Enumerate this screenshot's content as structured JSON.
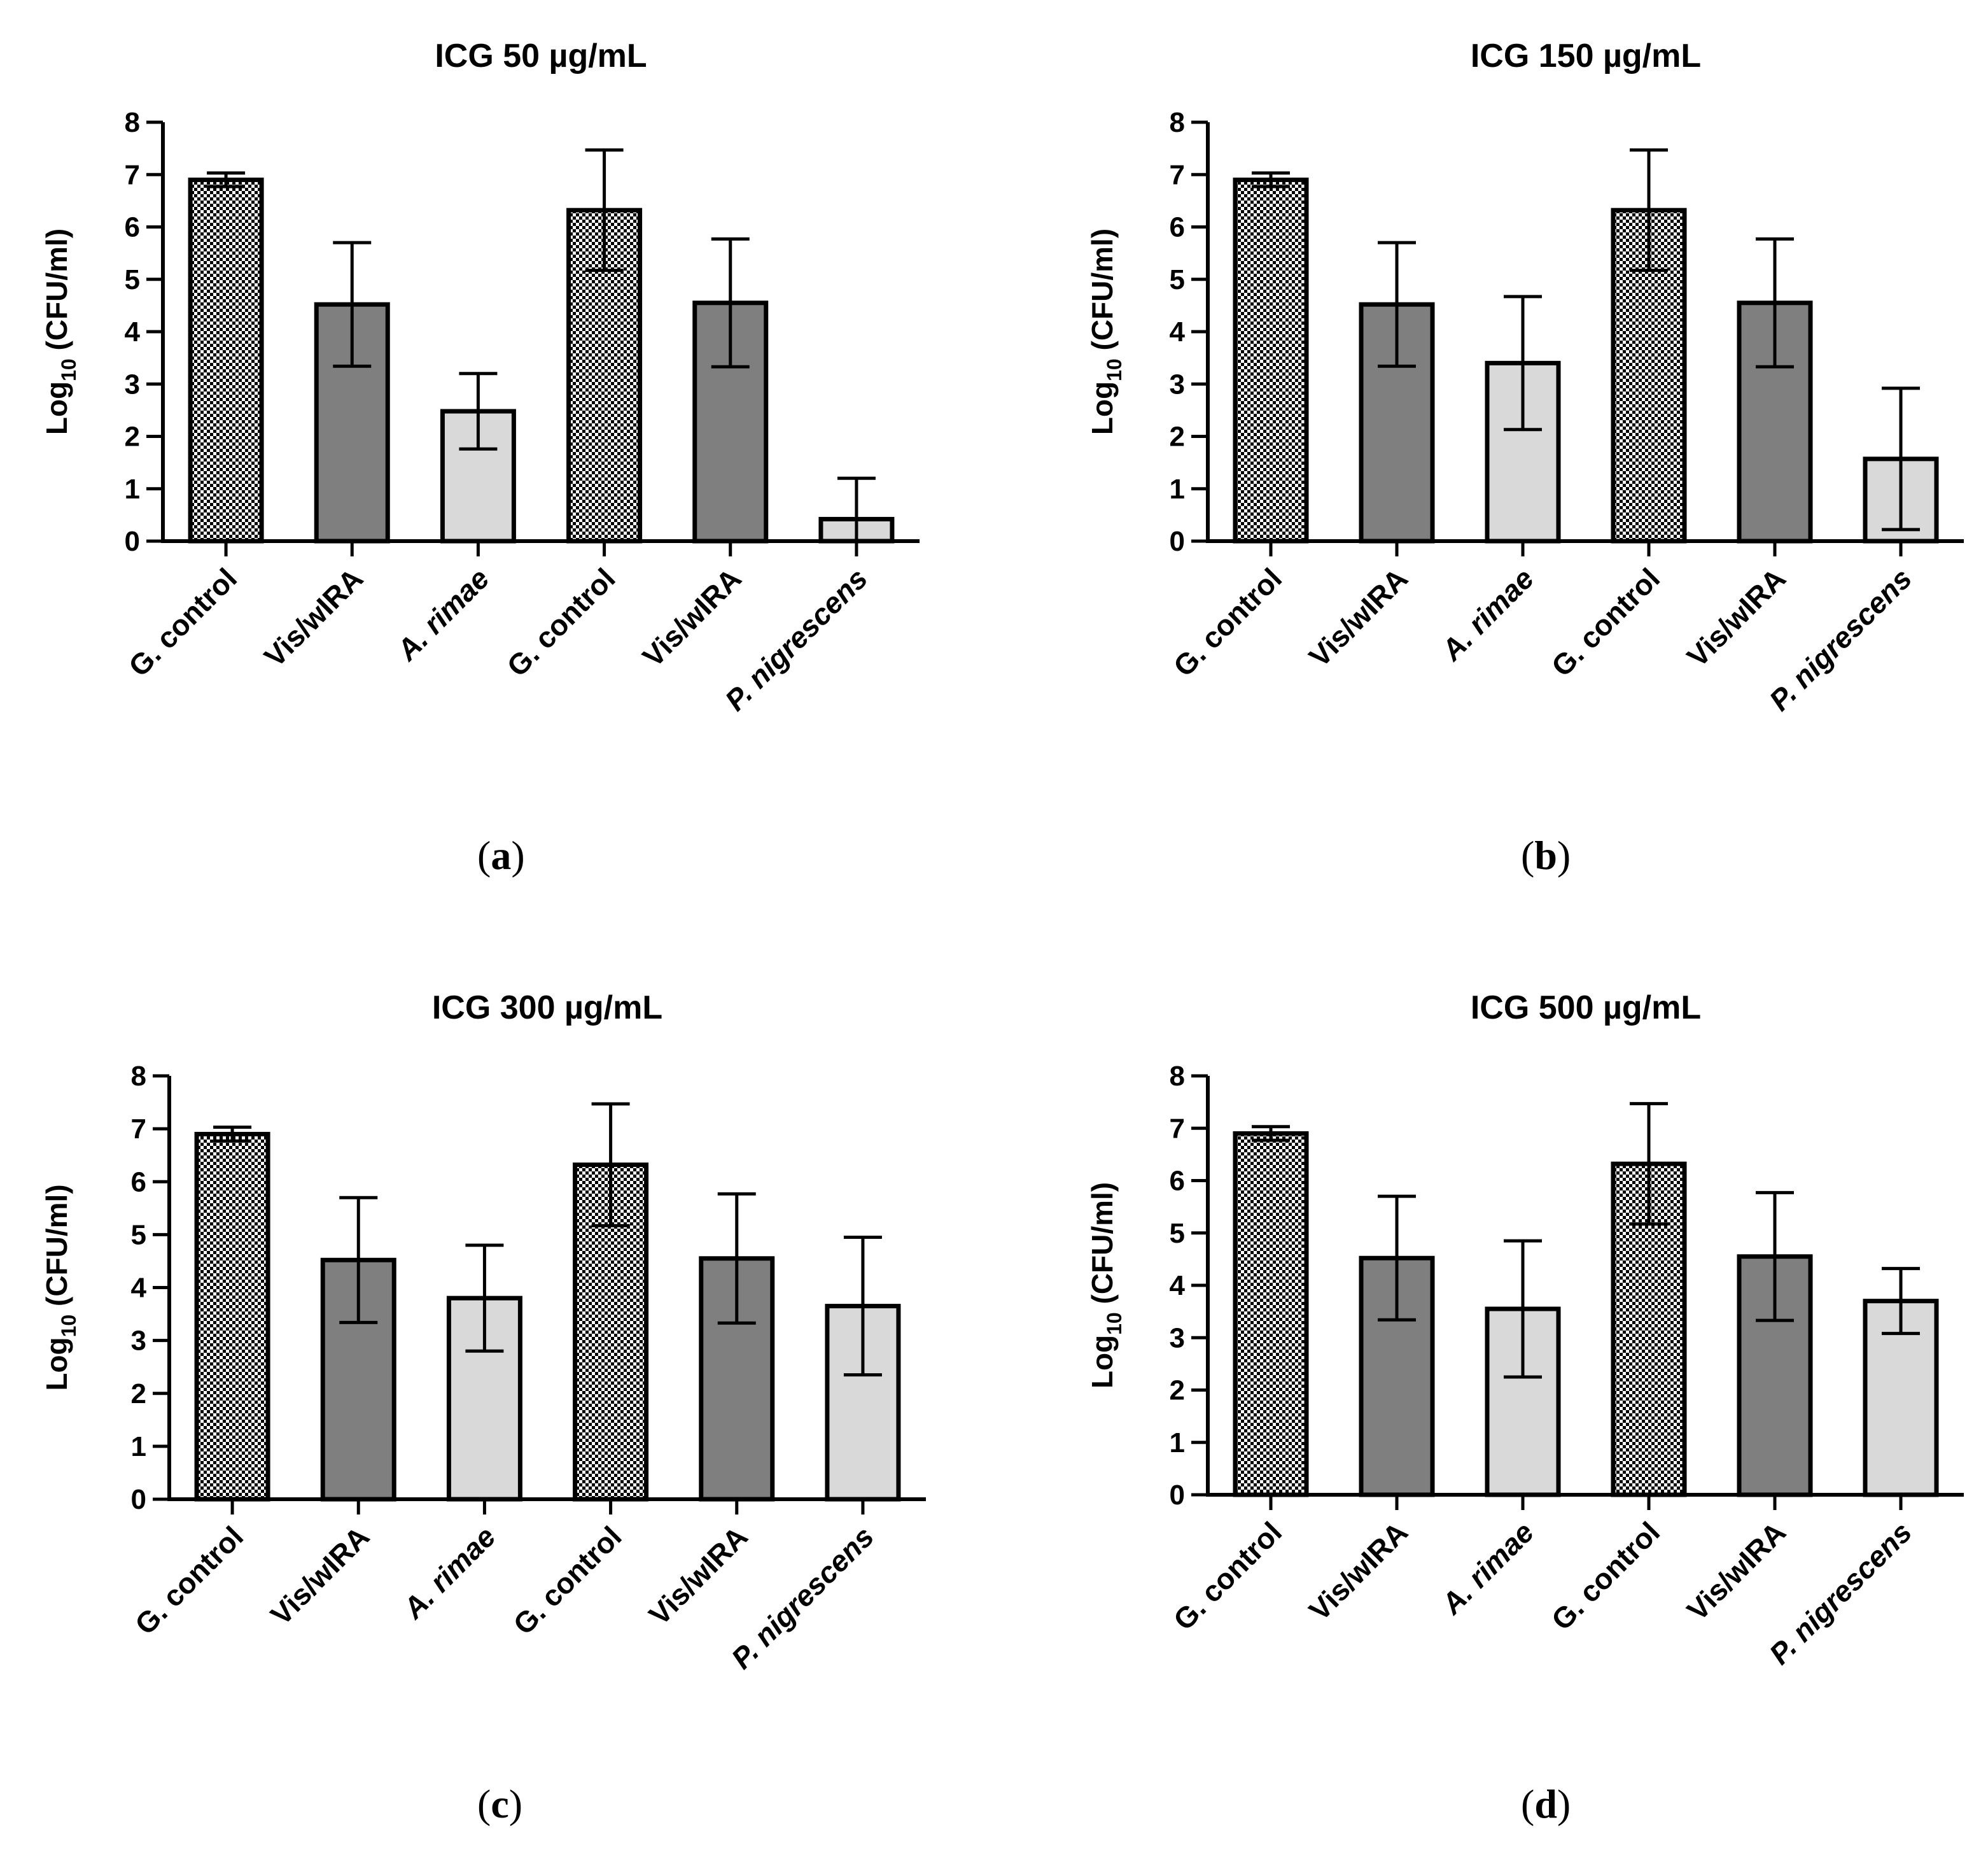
{
  "figure": {
    "colors": {
      "control_fill": "checkerboard",
      "treatment_fill": "#7f7f7f",
      "species_fill": "#d9d9d9",
      "stroke": "#000000"
    },
    "y_label": {
      "base": "Log",
      "sub": "10",
      "rest": " (CFU/ml)"
    }
  },
  "chart_data": [
    {
      "type": "bar",
      "letter": "a",
      "title": "ICG 50 µg/mL",
      "ylabel": "Log10 (CFU/ml)",
      "ylim": [
        0,
        8
      ],
      "yticks": [
        "0",
        "1",
        "2",
        "3",
        "4",
        "5",
        "6",
        "7",
        "8"
      ],
      "categories": [
        "G. control",
        "Vis/wIRA",
        "A. rimae",
        "G. control",
        "Vis/wIRA",
        "P. nigrescens"
      ],
      "italic": [
        false,
        false,
        true,
        false,
        false,
        true
      ],
      "fills": [
        "control",
        "treatment",
        "species",
        "control",
        "treatment",
        "species"
      ],
      "values": [
        6.9,
        4.52,
        2.48,
        6.32,
        4.55,
        0.42
      ],
      "errors": [
        0.13,
        1.18,
        0.72,
        1.15,
        1.22,
        0.78
      ]
    },
    {
      "type": "bar",
      "letter": "b",
      "title": "ICG 150 µg/mL",
      "ylabel": "Log10 (CFU/ml)",
      "ylim": [
        0,
        8
      ],
      "yticks": [
        "0",
        "1",
        "2",
        "3",
        "4",
        "5",
        "6",
        "7",
        "8"
      ],
      "categories": [
        "G. control",
        "Vis/wIRA",
        "A. rimae",
        "G. control",
        "Vis/wIRA",
        "P. nigrescens"
      ],
      "italic": [
        false,
        false,
        true,
        false,
        false,
        true
      ],
      "fills": [
        "control",
        "treatment",
        "species",
        "control",
        "treatment",
        "species"
      ],
      "values": [
        6.9,
        4.52,
        3.4,
        6.32,
        4.55,
        1.57
      ],
      "errors": [
        0.13,
        1.18,
        1.27,
        1.15,
        1.22,
        1.35
      ]
    },
    {
      "type": "bar",
      "letter": "c",
      "title": "ICG 300 µg/mL",
      "ylabel": "Log10 (CFU/ml)",
      "ylim": [
        0,
        8
      ],
      "yticks": [
        "0",
        "1",
        "2",
        "3",
        "4",
        "5",
        "6",
        "7",
        "8"
      ],
      "categories": [
        "G. control",
        "Vis/wIRA",
        "A. rimae",
        "G. control",
        "Vis/wIRA",
        "P. nigrescens"
      ],
      "italic": [
        false,
        false,
        true,
        false,
        false,
        true
      ],
      "fills": [
        "control",
        "treatment",
        "species",
        "control",
        "treatment",
        "species"
      ],
      "values": [
        6.9,
        4.52,
        3.8,
        6.32,
        4.55,
        3.65
      ],
      "errors": [
        0.13,
        1.18,
        1.0,
        1.15,
        1.22,
        1.3
      ]
    },
    {
      "type": "bar",
      "letter": "d",
      "title": "ICG 500 µg/mL",
      "ylabel": "Log10 (CFU/ml)",
      "ylim": [
        0,
        8
      ],
      "yticks": [
        "0",
        "1",
        "2",
        "3",
        "4",
        "5",
        "6",
        "7",
        "8"
      ],
      "categories": [
        "G. control",
        "Vis/wIRA",
        "A. rimae",
        "G. control",
        "Vis/wIRA",
        "P. nigrescens"
      ],
      "italic": [
        false,
        false,
        true,
        false,
        false,
        true
      ],
      "fills": [
        "control",
        "treatment",
        "species",
        "control",
        "treatment",
        "species"
      ],
      "values": [
        6.9,
        4.52,
        3.55,
        6.32,
        4.55,
        3.7
      ],
      "errors": [
        0.13,
        1.18,
        1.3,
        1.15,
        1.22,
        0.62
      ]
    }
  ]
}
